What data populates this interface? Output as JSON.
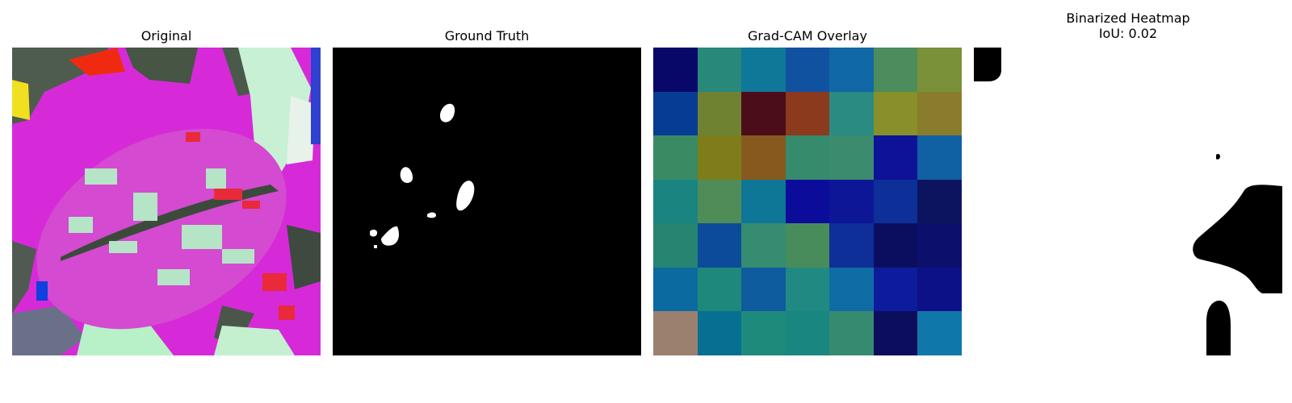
{
  "figure": {
    "panels": [
      {
        "title": "Original"
      },
      {
        "title": "Ground Truth"
      },
      {
        "title": "Grad-CAM Overlay",
        "grid_size": [
          7,
          7
        ],
        "colors": [
          [
            "#070868",
            "#28897a",
            "#0f7798",
            "#1052a0",
            "#1068a6",
            "#4d8c5c",
            "#7a9039"
          ],
          [
            "#073c94",
            "#6f8232",
            "#4b0d1a",
            "#8b3a1e",
            "#2a8b82",
            "#879029",
            "#8a7c2d"
          ],
          [
            "#3a8a64",
            "#7e7d1a",
            "#88591f",
            "#358b6c",
            "#3b8c6e",
            "#0d1296",
            "#1060a4"
          ],
          [
            "#1a8480",
            "#508c58",
            "#0e7696",
            "#0c0c9a",
            "#0c1696",
            "#0c2f98",
            "#0c1460"
          ],
          [
            "#268470",
            "#0b4b9a",
            "#358c70",
            "#488c5c",
            "#0e2e98",
            "#0b0e5e",
            "#0c0f6c"
          ],
          [
            "#0b6aa0",
            "#1f887c",
            "#0e5b9e",
            "#208a82",
            "#106ca4",
            "#0d1c9c",
            "#0d1188"
          ],
          [
            "#9b8070",
            "#066f92",
            "#1e8a7c",
            "#1a8680",
            "#368a70",
            "#0c0d5c",
            "#0f77aa"
          ]
        ]
      },
      {
        "title": "Binarized Heatmap\nIoU: 0.02",
        "iou": 0.02
      }
    ]
  }
}
